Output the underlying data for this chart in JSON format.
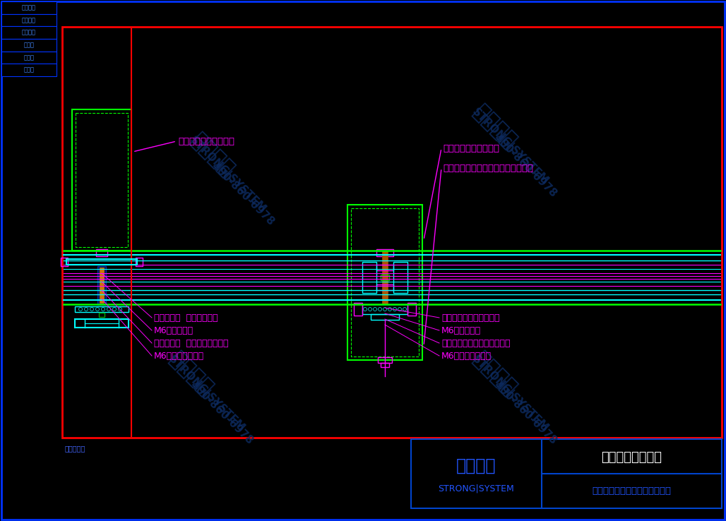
{
  "background_color": "#000000",
  "outer_border_color": "#0033ff",
  "inner_border_color": "#ff0000",
  "magenta": "#ff00ff",
  "cyan": "#00ffff",
  "green": "#00ff00",
  "white": "#ffffff",
  "blue_text": "#0055ff",
  "orange": "#cc6600",
  "sidebar_labels": [
    "安全防火",
    "环保节能",
    "超级防腐",
    "大跨度",
    "大通透",
    "更纤细"
  ],
  "title_text": "精制钢：轻钢系统",
  "company_text": "西创金属科技（江苏）有限公司",
  "patent_text": "专利产品！",
  "logo_text": "西创系统",
  "logo_sub": "STRONG|SYSTEM",
  "wm_color": "#0d2a5e",
  "wm_color2": "#1a3a6a"
}
